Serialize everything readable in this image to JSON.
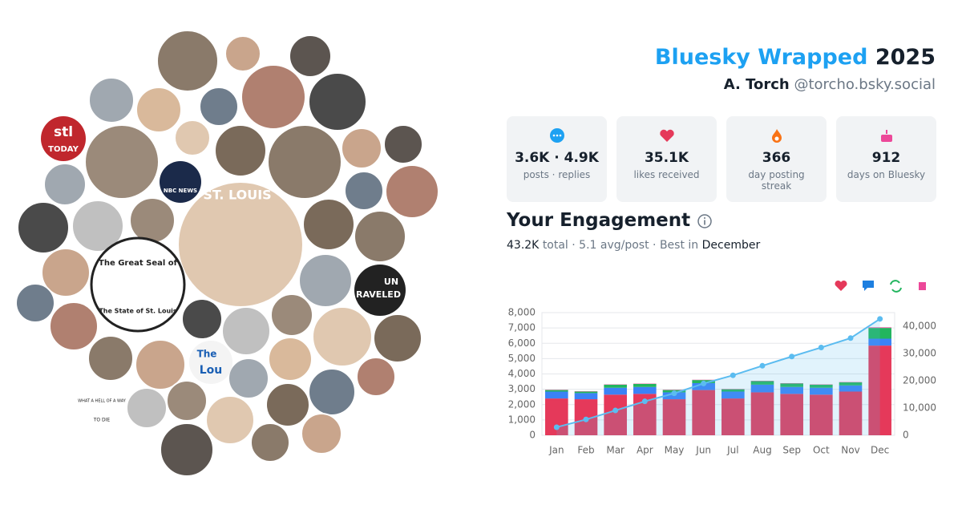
{
  "header": {
    "title": "Bluesky Wrapped",
    "year": "2025",
    "name": "A. Torch",
    "handle": "@torcho.bsky.social"
  },
  "stats": [
    {
      "value": "3.6K · 4.9K",
      "label": "posts · replies"
    },
    {
      "value": "35.1K",
      "label": "likes received"
    },
    {
      "value": "366",
      "label": "day posting streak"
    },
    {
      "value": "912",
      "label": "days on Bluesky"
    }
  ],
  "engagement": {
    "title": "Your Engagement",
    "total": "43.2K",
    "summary": "total · 5.1 avg/post · Best in",
    "best": "December"
  },
  "avatar_texts": [
    "stl",
    "TODAY",
    "NBC NEWS",
    "ST. LOUIS",
    "The Great Seal of",
    "The State of St. Louis",
    "UN",
    "RAVELED",
    "The",
    "Lou",
    "WHAT A HELL OF A WAY",
    "TO DIE"
  ],
  "chart_data": {
    "type": "bar",
    "stacked": true,
    "categories": [
      "Jan",
      "Feb",
      "Mar",
      "Apr",
      "May",
      "Jun",
      "Jul",
      "Aug",
      "Sep",
      "Oct",
      "Nov",
      "Dec"
    ],
    "series": [
      {
        "color": "#e5395a",
        "values": [
          2400,
          2350,
          2650,
          2700,
          2350,
          2950,
          2400,
          2800,
          2700,
          2650,
          2850,
          5850
        ]
      },
      {
        "color": "#3b82f6",
        "values": [
          450,
          400,
          450,
          450,
          450,
          450,
          450,
          500,
          450,
          450,
          400,
          450
        ]
      },
      {
        "color": "#22b55e",
        "values": [
          100,
          100,
          200,
          200,
          150,
          200,
          150,
          230,
          230,
          200,
          200,
          700
        ]
      },
      {
        "color": "#ec4899",
        "values": [
          20,
          20,
          20,
          20,
          20,
          20,
          20,
          20,
          20,
          20,
          20,
          40
        ]
      },
      {
        "type": "line",
        "axis": "y2",
        "color": "#5bbcf0",
        "values": [
          2950,
          5800,
          9100,
          12450,
          15400,
          19000,
          22000,
          25500,
          28900,
          32200,
          35650,
          42700
        ]
      }
    ],
    "ylim": [
      0,
      8000
    ],
    "yticks": [
      0,
      {
        "value": 1000,
        "label": "1,000"
      },
      {
        "value": 2000,
        "label": "2,000"
      },
      {
        "value": 3000,
        "label": "3,000"
      },
      {
        "value": 4000,
        "label": "4,000"
      },
      {
        "value": 5000,
        "label": "5,000"
      },
      {
        "value": 6000,
        "label": "6,000"
      },
      {
        "value": 7000,
        "label": "7,000"
      },
      {
        "value": 8000,
        "label": "8,000"
      }
    ],
    "y2lim": [
      0,
      45000
    ],
    "y2ticks": [
      0,
      {
        "value": 10000,
        "label": "10,000"
      },
      {
        "value": 20000,
        "label": "20,000"
      },
      {
        "value": 30000,
        "label": "30,000"
      },
      {
        "value": 40000,
        "label": "40,000"
      }
    ],
    "grid": true
  }
}
